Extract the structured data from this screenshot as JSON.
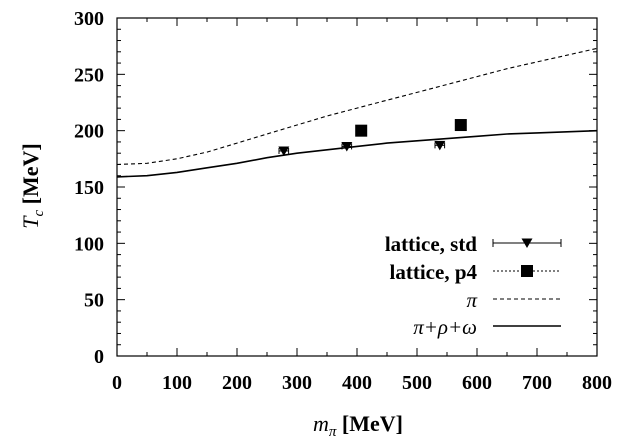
{
  "chart_data": {
    "type": "line",
    "xlabel": {
      "symbol": "m",
      "subscript": "π",
      "unit": " [MeV]"
    },
    "ylabel": {
      "symbol": "T",
      "subscript": "c",
      "unit": " [MeV]"
    },
    "xlim": [
      0,
      800
    ],
    "ylim": [
      0,
      300
    ],
    "xticks": [
      "0",
      "100",
      "200",
      "300",
      "400",
      "500",
      "600",
      "700",
      "800"
    ],
    "yticks": [
      "0",
      "50",
      "100",
      "150",
      "200",
      "250",
      "300"
    ],
    "grid": false,
    "legend_position": "bottom-right",
    "series": [
      {
        "name": "lattice, std",
        "kind": "scatter-errorbar",
        "marker": "triangle-down",
        "points": [
          {
            "x": 278,
            "y": 182,
            "xerr": 8
          },
          {
            "x": 383,
            "y": 186,
            "xerr": 8
          },
          {
            "x": 538,
            "y": 187,
            "xerr": 8
          }
        ]
      },
      {
        "name": "lattice, p4",
        "kind": "scatter",
        "marker": "square",
        "points": [
          {
            "x": 407,
            "y": 200
          },
          {
            "x": 573,
            "y": 205
          }
        ]
      },
      {
        "name": "π",
        "kind": "line",
        "dash": "dashed",
        "points": [
          {
            "x": 0,
            "y": 170
          },
          {
            "x": 50,
            "y": 171
          },
          {
            "x": 100,
            "y": 175
          },
          {
            "x": 150,
            "y": 181
          },
          {
            "x": 200,
            "y": 189
          },
          {
            "x": 250,
            "y": 197
          },
          {
            "x": 300,
            "y": 205
          },
          {
            "x": 350,
            "y": 213
          },
          {
            "x": 400,
            "y": 220
          },
          {
            "x": 450,
            "y": 227
          },
          {
            "x": 500,
            "y": 234
          },
          {
            "x": 550,
            "y": 241
          },
          {
            "x": 600,
            "y": 248
          },
          {
            "x": 650,
            "y": 255
          },
          {
            "x": 700,
            "y": 261
          },
          {
            "x": 750,
            "y": 267
          },
          {
            "x": 800,
            "y": 273
          }
        ]
      },
      {
        "name": "π+ρ+ω",
        "kind": "line",
        "dash": "solid",
        "points": [
          {
            "x": 0,
            "y": 159
          },
          {
            "x": 50,
            "y": 160
          },
          {
            "x": 100,
            "y": 163
          },
          {
            "x": 150,
            "y": 167
          },
          {
            "x": 200,
            "y": 171
          },
          {
            "x": 250,
            "y": 176
          },
          {
            "x": 300,
            "y": 180
          },
          {
            "x": 350,
            "y": 183
          },
          {
            "x": 400,
            "y": 186
          },
          {
            "x": 450,
            "y": 189
          },
          {
            "x": 500,
            "y": 191
          },
          {
            "x": 550,
            "y": 193
          },
          {
            "x": 600,
            "y": 195
          },
          {
            "x": 650,
            "y": 197
          },
          {
            "x": 700,
            "y": 198
          },
          {
            "x": 750,
            "y": 199
          },
          {
            "x": 800,
            "y": 200
          }
        ]
      }
    ],
    "colors": {
      "all": "#000000"
    }
  }
}
